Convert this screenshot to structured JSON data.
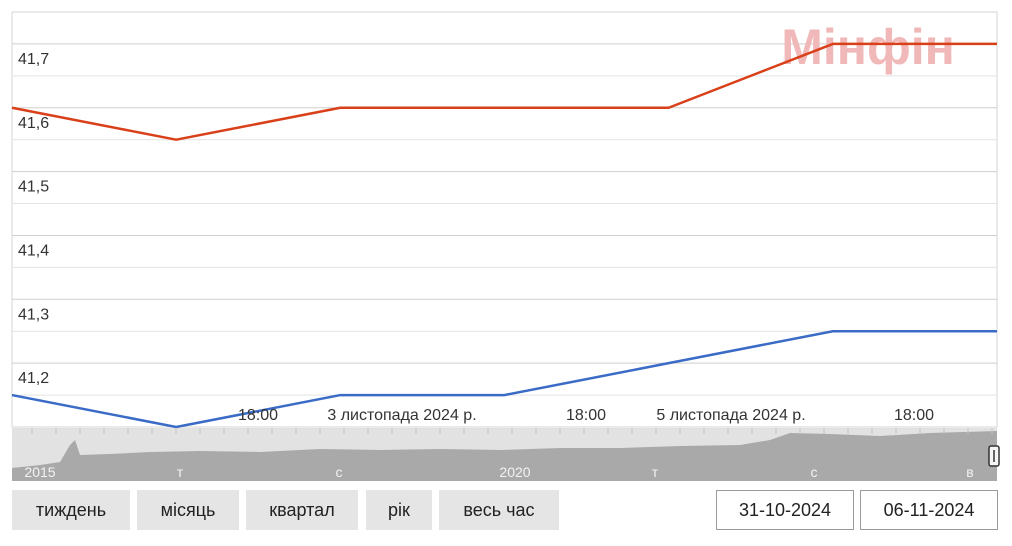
{
  "watermark": "Мінфін",
  "chart_data": {
    "type": "line",
    "ylim": [
      41.1,
      41.75
    ],
    "y_ticks": [
      "41,2",
      "41,3",
      "41,4",
      "41,5",
      "41,6",
      "41,7"
    ],
    "y_tick_values": [
      41.2,
      41.3,
      41.4,
      41.5,
      41.6,
      41.7
    ],
    "x_labels": [
      "18:00",
      "3 листопада 2024 р.",
      "18:00",
      "5 листопада 2024 р.",
      "18:00"
    ],
    "x": [
      "2024-10-31",
      "2024-11-01",
      "2024-11-02",
      "2024-11-03",
      "2024-11-04",
      "2024-11-05",
      "2024-11-06"
    ],
    "series": [
      {
        "color": "#d9401a",
        "values": [
          41.6,
          41.55,
          41.6,
          41.6,
          41.6,
          41.7,
          41.7
        ]
      },
      {
        "color": "#3a6bc6",
        "values": [
          41.15,
          41.1,
          41.15,
          41.15,
          41.2,
          41.25,
          41.25
        ]
      }
    ],
    "navigator": {
      "labels": [
        "2015",
        "т",
        "с",
        "2020",
        "т",
        "с",
        "в"
      ]
    }
  },
  "controls": {
    "buttons": [
      "тиждень",
      "місяць",
      "квартал",
      "рік",
      "весь час"
    ],
    "date_from": "31-10-2024",
    "date_to": "06-11-2024"
  }
}
